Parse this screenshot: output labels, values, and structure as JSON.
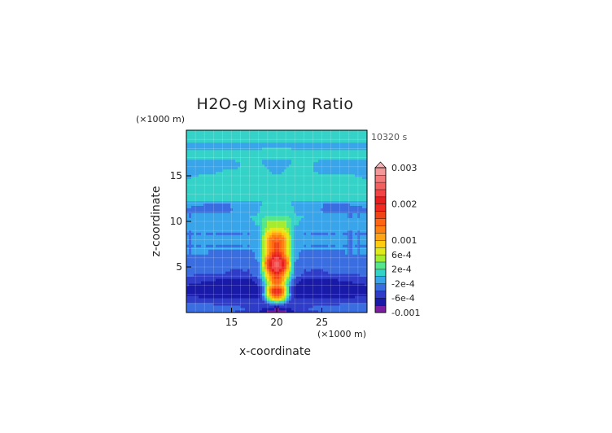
{
  "chart_data": {
    "type": "heatmap",
    "title": "H2O-g Mixing Ratio",
    "xlabel": "x-coordinate",
    "ylabel": "z-coordinate",
    "x_unit": "(×1000 m)",
    "y_unit": "(×1000 m)",
    "time_label": "10320 s",
    "xlim": [
      10,
      30
    ],
    "ylim": [
      0,
      20
    ],
    "x_ticks": [
      15,
      20,
      25
    ],
    "y_ticks": [
      5,
      10,
      15
    ],
    "x_tick_labels": [
      "15",
      "20",
      "25"
    ],
    "y_tick_labels": [
      "5",
      "10",
      "15"
    ],
    "grid": true,
    "colorbar": {
      "labels": [
        "0.003",
        "0.002",
        "0.001",
        "6e-4",
        "2e-4",
        "-2e-4",
        "-6e-4",
        "-0.001"
      ],
      "label_values": [
        0.003,
        0.002,
        0.001,
        0.0006,
        0.0002,
        -0.0002,
        -0.0006,
        -0.001
      ],
      "levels": [
        -0.001,
        -0.0008,
        -0.0006,
        -0.0004,
        -0.0002,
        0,
        0.0002,
        0.0004,
        0.0006,
        0.0008,
        0.001,
        0.0012,
        0.0014,
        0.0016,
        0.0018,
        0.002,
        0.0022,
        0.0024,
        0.0026,
        0.0028,
        0.003
      ],
      "colors": [
        "#7b1fa2",
        "#1a1aa8",
        "#2e3cc8",
        "#3a6ee0",
        "#38a4ea",
        "#35d2c8",
        "#54e68a",
        "#a6ec2e",
        "#e0ea1a",
        "#ffcc10",
        "#ffa416",
        "#ff8012",
        "#ff6614",
        "#f04416",
        "#f02a20",
        "#e61e1e",
        "#f24444",
        "#f26060",
        "#f27a7a",
        "#f29898",
        "#f8b8b8"
      ]
    },
    "field_grid": {
      "x": [
        10,
        12.5,
        15,
        17,
        18,
        18.5,
        19,
        19.5,
        20,
        20.5,
        21,
        21.5,
        22,
        23,
        25,
        27.5,
        30
      ],
      "z": [
        0,
        0.5,
        1,
        1.5,
        2,
        2.5,
        3,
        3.5,
        4,
        4.5,
        5,
        5.5,
        6,
        6.5,
        7,
        7.5,
        8,
        8.5,
        9,
        9.5,
        10,
        10.5,
        11,
        11.5,
        12,
        12.5,
        13,
        13.5,
        14,
        14.5,
        15,
        15.5,
        16,
        16.5,
        17,
        17.5,
        18,
        18.5,
        19,
        19.5,
        20
      ],
      "values": [
        [
          -0.0003,
          -0.0003,
          -0.0004,
          -0.0005,
          -0.0006,
          -0.0007,
          -0.0009,
          -0.001,
          -0.001,
          -0.001,
          -0.0009,
          -0.0007,
          -0.0006,
          -0.0005,
          -0.0004,
          -0.0003,
          -0.0003
        ],
        [
          -0.0003,
          -0.0003,
          -0.0003,
          -0.0004,
          -0.0005,
          -0.0006,
          -0.0006,
          -0.0007,
          -0.0008,
          -0.0007,
          -0.0006,
          -0.0006,
          -0.0005,
          -0.0004,
          -0.0003,
          -0.0003,
          -0.0003
        ],
        [
          -0.0004,
          -0.0004,
          -0.0005,
          -0.0005,
          -0.0006,
          -0.0005,
          -0.0004,
          -0.0003,
          -0.0003,
          -0.0003,
          -0.0004,
          -0.0005,
          -0.0006,
          -0.0005,
          -0.0005,
          -0.0004,
          -0.0004
        ],
        [
          -0.0005,
          -0.0006,
          -0.0006,
          -0.0006,
          -0.0006,
          -0.0004,
          0.0002,
          0.0008,
          0.0012,
          0.0008,
          0.0002,
          -0.0004,
          -0.0006,
          -0.0006,
          -0.0006,
          -0.0006,
          -0.0005
        ],
        [
          -0.0006,
          -0.0007,
          -0.0007,
          -0.0007,
          -0.0006,
          -0.0002,
          0.0006,
          0.0014,
          0.0018,
          0.0014,
          0.0006,
          -0.0002,
          -0.0006,
          -0.0007,
          -0.0007,
          -0.0007,
          -0.0006
        ],
        [
          -0.0007,
          -0.0008,
          -0.0008,
          -0.0008,
          -0.0007,
          -0.0003,
          0.0008,
          0.0017,
          0.0021,
          0.0017,
          0.0008,
          -0.0003,
          -0.0007,
          -0.0008,
          -0.0008,
          -0.0008,
          -0.0007
        ],
        [
          -0.0006,
          -0.0007,
          -0.0008,
          -0.0008,
          -0.0006,
          -0.0002,
          0.0004,
          0.001,
          0.0014,
          0.001,
          0.0004,
          -0.0002,
          -0.0006,
          -0.0008,
          -0.0008,
          -0.0007,
          -0.0006
        ],
        [
          -0.0005,
          -0.0006,
          -0.0007,
          -0.0007,
          -0.0005,
          0,
          0.0006,
          0.0012,
          0.0016,
          0.0012,
          0.0006,
          0,
          -0.0005,
          -0.0007,
          -0.0007,
          -0.0006,
          -0.0005
        ],
        [
          -0.0004,
          -0.0005,
          -0.0005,
          -0.0005,
          -0.0003,
          0.0002,
          0.0008,
          0.0014,
          0.0018,
          0.0014,
          0.0008,
          0.0002,
          -0.0003,
          -0.0005,
          -0.0005,
          -0.0005,
          -0.0004
        ],
        [
          -0.0003,
          -0.0003,
          -0.0004,
          -0.0004,
          -0.0002,
          0.0004,
          0.0012,
          0.0018,
          0.0022,
          0.0018,
          0.0012,
          0.0004,
          -0.0002,
          -0.0004,
          -0.0004,
          -0.0003,
          -0.0003
        ],
        [
          -0.0003,
          -0.0003,
          -0.0004,
          -0.0004,
          -0.0002,
          0.0006,
          0.0016,
          0.0022,
          0.0025,
          0.0022,
          0.0016,
          0.0006,
          -0.0002,
          -0.0004,
          -0.0004,
          -0.0003,
          -0.0003
        ],
        [
          -0.0003,
          -0.0004,
          -0.0004,
          -0.0004,
          -0.0002,
          0.0006,
          0.0017,
          0.0023,
          0.0026,
          0.0023,
          0.0017,
          0.0006,
          -0.0002,
          -0.0004,
          -0.0004,
          -0.0004,
          -0.0003
        ],
        [
          -0.0002,
          -0.0003,
          -0.0003,
          -0.0003,
          -0.0001,
          0.0005,
          0.0014,
          0.002,
          0.0023,
          0.002,
          0.0014,
          0.0005,
          -0.0001,
          -0.0003,
          -0.0003,
          -0.0003,
          -0.0002
        ],
        [
          -0.0002,
          -0.0002,
          -0.0003,
          -0.0003,
          -0.0001,
          0.0004,
          0.0011,
          0.0016,
          0.0019,
          0.0016,
          0.0011,
          0.0004,
          -0.0001,
          -0.0003,
          -0.0003,
          -0.0002,
          -0.0002
        ],
        [
          -0.0002,
          -0.0002,
          -0.0002,
          -0.0002,
          0,
          0.0004,
          0.001,
          0.0015,
          0.0017,
          0.0015,
          0.001,
          0.0004,
          0,
          -0.0002,
          -0.0002,
          -0.0002,
          -0.0002
        ],
        [
          -0.0002,
          -0.0002,
          -0.0002,
          -0.0002,
          0,
          0.0004,
          0.001,
          0.0015,
          0.0017,
          0.0015,
          0.001,
          0.0004,
          0,
          -0.0002,
          -0.0002,
          -0.0002,
          -0.0002
        ],
        [
          -0.0002,
          -0.0002,
          -0.0002,
          -0.0002,
          0,
          0.0004,
          0.001,
          0.0014,
          0.0016,
          0.0014,
          0.001,
          0.0004,
          0,
          -0.0002,
          -0.0002,
          -0.0002,
          -0.0002
        ],
        [
          -0.0002,
          -0.0002,
          -0.0002,
          -0.0002,
          0,
          0.0004,
          0.0009,
          0.0012,
          0.0013,
          0.0012,
          0.0009,
          0.0004,
          0,
          -0.0002,
          -0.0002,
          -0.0002,
          -0.0002
        ],
        [
          -0.0002,
          -0.0002,
          -0.0002,
          -0.0002,
          -0.0001,
          0.0003,
          0.0006,
          0.0008,
          0.0009,
          0.0008,
          0.0006,
          0.0003,
          -0.0001,
          -0.0002,
          -0.0002,
          -0.0002,
          -0.0002
        ],
        [
          -0.0001,
          -0.0001,
          -0.0001,
          -0.0001,
          0,
          0.0002,
          0.0004,
          0.0005,
          0.0005,
          0.0005,
          0.0004,
          0.0002,
          0,
          -0.0001,
          -0.0001,
          -0.0001,
          -0.0001
        ],
        [
          -0.0001,
          -0.0001,
          -0.0001,
          -0.0001,
          0.0001,
          0.0003,
          0.0004,
          0.0004,
          0.0004,
          0.0004,
          0.0004,
          0.0003,
          0.0001,
          -0.0001,
          -0.0001,
          -0.0001,
          -0.0001
        ],
        [
          -0.0002,
          -0.0002,
          -0.0002,
          0,
          0.0001,
          0.0002,
          0.0003,
          0.0003,
          0.0003,
          0.0003,
          0.0003,
          0.0002,
          0.0001,
          0,
          -0.0002,
          -0.0002,
          -0.0002
        ],
        [
          -0.0002,
          -0.0002,
          -0.0002,
          -0.0002,
          0,
          0.0001,
          0.0001,
          0.0001,
          0.0001,
          0.0001,
          0.0001,
          0.0001,
          0,
          -0.0002,
          -0.0002,
          -0.0002,
          -0.0002
        ],
        [
          -0.0002,
          -0.0003,
          -0.0002,
          -0.0001,
          0,
          0.0001,
          0.0001,
          0.0001,
          0.0001,
          0.0001,
          0.0001,
          0.0001,
          0,
          -0.0001,
          -0.0002,
          -0.0003,
          -0.0002
        ],
        [
          -0.0001,
          -0.0002,
          -0.0002,
          -0.0001,
          -0.0001,
          0,
          0,
          0,
          0,
          0,
          0,
          0,
          -0.0001,
          -0.0001,
          -0.0002,
          -0.0002,
          -0.0001
        ],
        [
          0.0001,
          0.0001,
          0.0001,
          0.0001,
          0.0001,
          0.0001,
          0.0001,
          0.0001,
          0.0001,
          0.0001,
          0.0001,
          0.0001,
          0.0001,
          0.0001,
          0.0001,
          0.0001,
          0.0001
        ],
        [
          0.0001,
          0.0001,
          0.0001,
          0.0001,
          0.0001,
          0.0001,
          0.0001,
          0.0001,
          0.0001,
          0.0001,
          0.0001,
          0.0001,
          0.0001,
          0.0001,
          0.0001,
          0.0001,
          0.0001
        ],
        [
          0.0001,
          0.0001,
          0.0001,
          0.0001,
          0.0001,
          0.0001,
          0.0001,
          0.0001,
          0.0001,
          0.0001,
          0.0001,
          0.0001,
          0.0001,
          0.0001,
          0.0001,
          0.0001,
          0.0001
        ],
        [
          0.0001,
          0.0001,
          0.0001,
          0.0001,
          0.0001,
          0.0001,
          0.0001,
          0.0001,
          0.0001,
          0.0001,
          0.0001,
          0.0001,
          0.0001,
          0.0001,
          0.0001,
          0.0001,
          0.0001
        ],
        [
          0.0001,
          0.0001,
          0.0001,
          0.0001,
          0.0001,
          0.0001,
          0.0001,
          0.0001,
          0.0001,
          0.0001,
          0.0001,
          0.0001,
          0.0001,
          0.0001,
          0.0001,
          0.0001,
          0.0001
        ],
        [
          -0.0001,
          0.0001,
          0.0001,
          0.0001,
          0.0001,
          0.0001,
          0.0001,
          0.0001,
          0.0001,
          0.0001,
          0.0001,
          0.0001,
          0.0001,
          0.0001,
          0.0001,
          0.0001,
          -0.0001
        ],
        [
          -0.0001,
          -0.0001,
          0.0001,
          0.0001,
          0.0001,
          0.0001,
          0.0001,
          -0.0001,
          -0.0001,
          -0.0001,
          0.0001,
          0.0001,
          0.0001,
          0.0001,
          -0.0001,
          -0.0001,
          -0.0001
        ],
        [
          -0.0001,
          -0.0001,
          -0.0001,
          0.0001,
          0.0001,
          0.0001,
          -0.0001,
          -0.0001,
          -0.0001,
          -0.0001,
          -0.0001,
          0.0001,
          0.0001,
          0.0001,
          -0.0001,
          -0.0001,
          -0.0001
        ],
        [
          -0.0001,
          -0.0001,
          -0.0001,
          0.0001,
          0.0001,
          -0.0001,
          -0.0001,
          -0.0001,
          -0.0001,
          -0.0001,
          -0.0001,
          -0.0001,
          0.0001,
          0.0001,
          -0.0001,
          -0.0001,
          -0.0001
        ],
        [
          0.0001,
          0.0001,
          0.0001,
          0.0001,
          0.0001,
          0.0001,
          0.0001,
          0.0001,
          0.0001,
          0.0001,
          0.0001,
          0.0001,
          0.0001,
          0.0001,
          0.0001,
          0.0001,
          0.0001
        ],
        [
          0.0001,
          0.0001,
          0.0001,
          0.0001,
          0.0001,
          0.0001,
          0.0001,
          0.0001,
          0.0001,
          0.0001,
          0.0001,
          0.0001,
          0.0001,
          0.0001,
          0.0001,
          0.0001,
          0.0001
        ],
        [
          -0.0001,
          -0.0001,
          -0.0001,
          -0.0001,
          -0.0001,
          0.0001,
          0.0001,
          0.0001,
          0.0001,
          0.0001,
          0.0001,
          0.0001,
          -0.0001,
          -0.0001,
          -0.0001,
          -0.0001,
          -0.0001
        ],
        [
          -0.0001,
          -0.0001,
          -0.0001,
          -0.0001,
          -0.0001,
          -0.0001,
          -0.0001,
          -0.0001,
          -0.0001,
          -0.0001,
          -0.0001,
          -0.0001,
          -0.0001,
          -0.0001,
          -0.0001,
          -0.0001,
          -0.0001
        ],
        [
          0.0001,
          0.0001,
          0.0001,
          0.0001,
          0.0001,
          0.0001,
          0.0001,
          0.0001,
          0.0001,
          0.0001,
          0.0001,
          0.0001,
          0.0001,
          0.0001,
          0.0001,
          0.0001,
          0.0001
        ],
        [
          0.0001,
          0.0001,
          0.0001,
          0.0001,
          0.0001,
          0.0001,
          0.0001,
          0.0001,
          0.0001,
          0.0001,
          0.0001,
          0.0001,
          0.0001,
          0.0001,
          0.0001,
          0.0001,
          0.0001
        ],
        [
          0.0001,
          0.0001,
          0.0001,
          0.0001,
          0.0001,
          0.0001,
          0.0001,
          0.0001,
          0.0001,
          0.0001,
          0.0001,
          0.0001,
          0.0001,
          0.0001,
          0.0001,
          0.0001,
          0.0001
        ]
      ]
    }
  }
}
